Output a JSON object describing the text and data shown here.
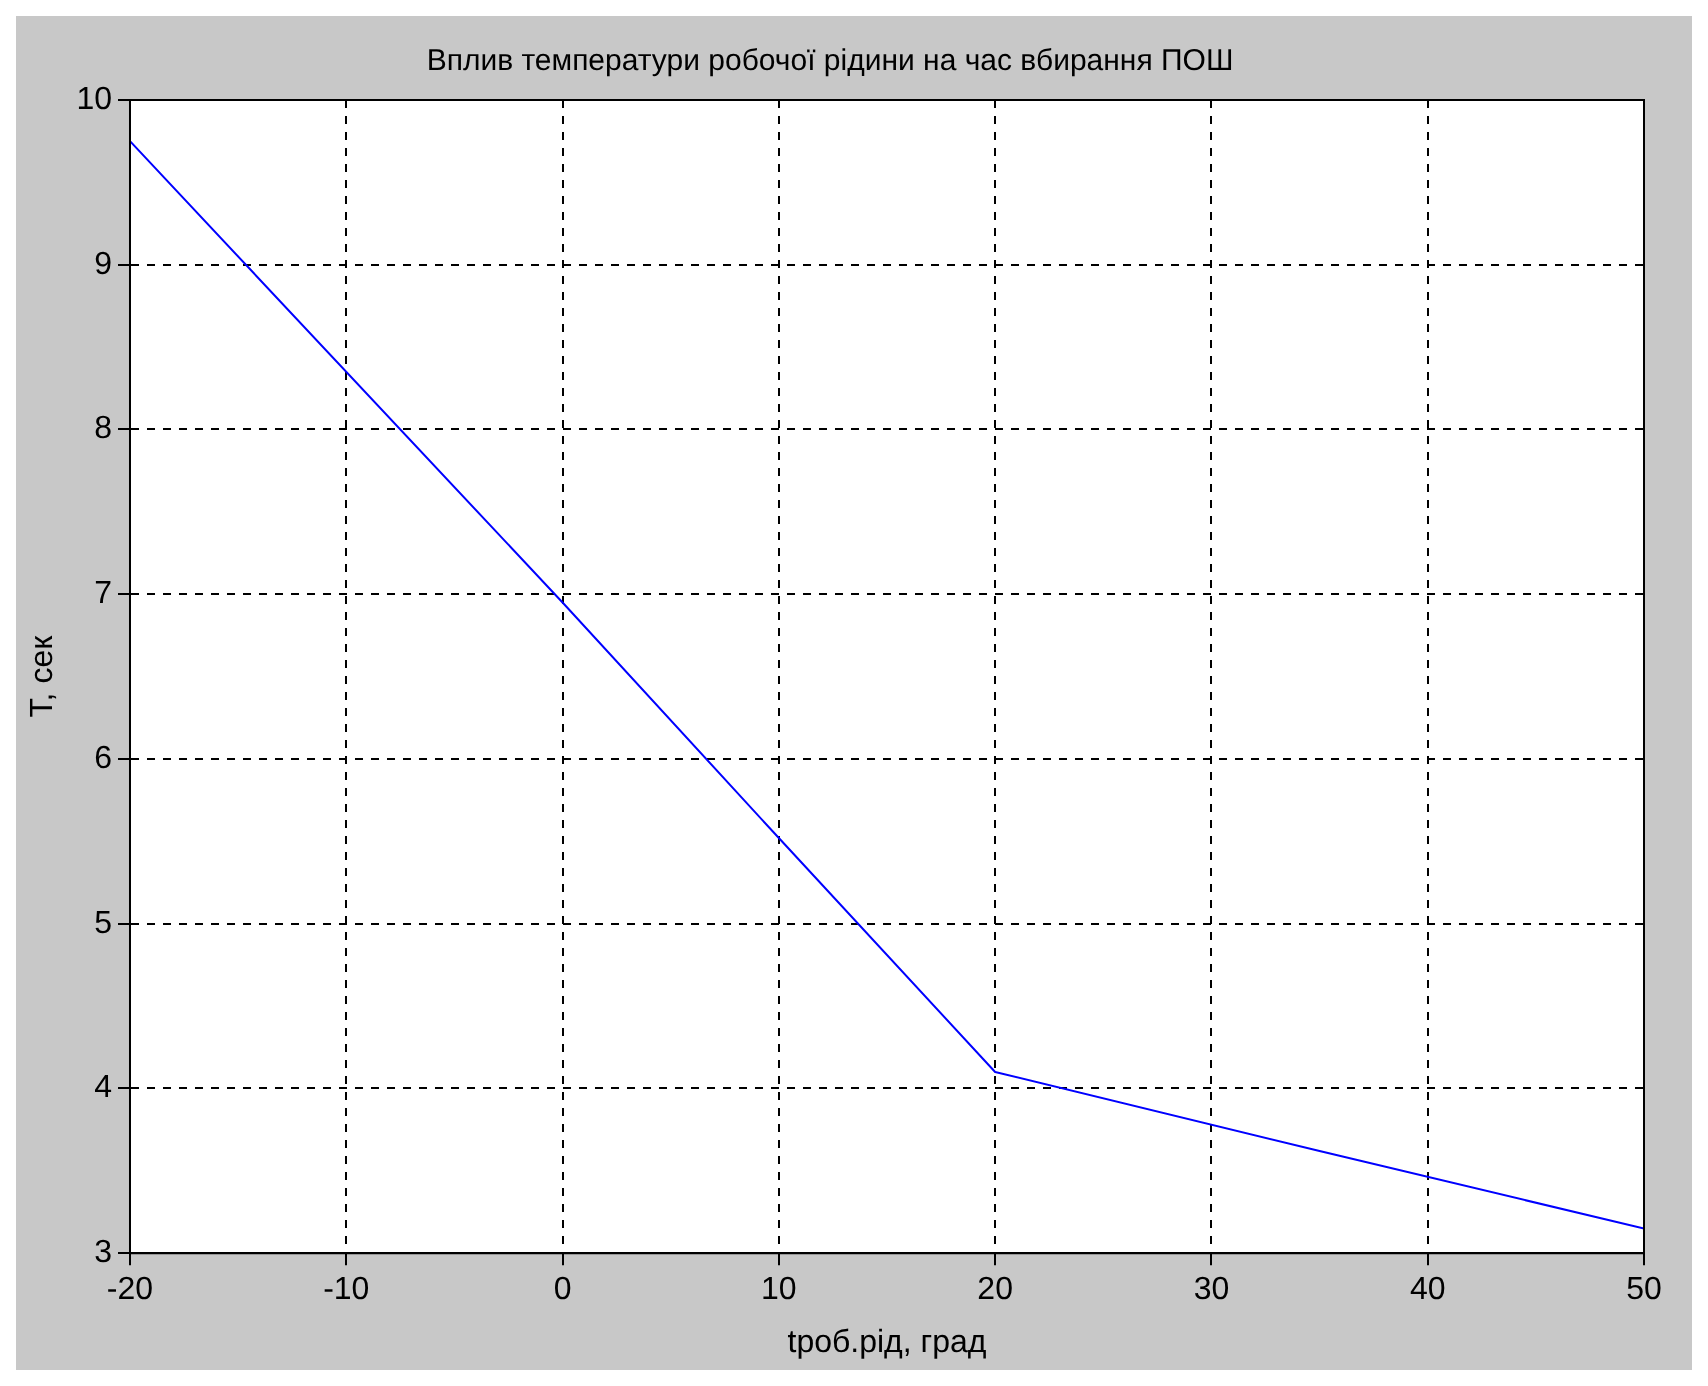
{
  "chart_data": {
    "type": "line",
    "title": "Вплив температури робочої рідини на час вбирання ПОШ",
    "xlabel": "tроб.рід, град",
    "ylabel": "T, сек",
    "series": [
      {
        "color": "#0000ff",
        "x": [
          -20,
          0,
          10,
          20,
          35,
          50
        ],
        "values": [
          9.75,
          6.95,
          5.52,
          4.1,
          3.62,
          3.15
        ]
      }
    ],
    "xlim": [
      -20,
      50
    ],
    "xticks": [
      -20,
      -10,
      0,
      10,
      20,
      30,
      40,
      50
    ],
    "ylim": [
      3,
      10
    ],
    "yticks": [
      3,
      4,
      5,
      6,
      7,
      8,
      9,
      10
    ],
    "grid": true,
    "legend": false,
    "marker": "none",
    "line_style": "solid"
  }
}
